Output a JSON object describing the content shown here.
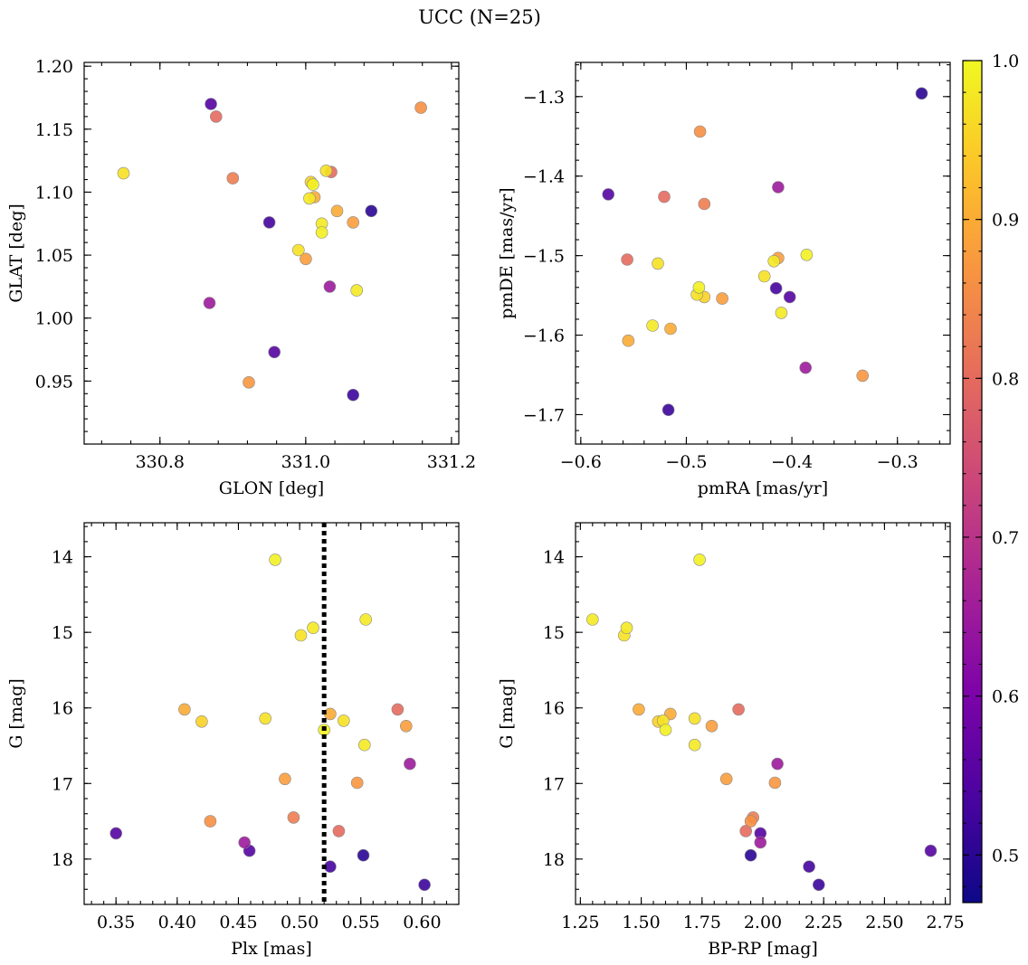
{
  "chart_data": {
    "title": "UCC (N=25)",
    "type": "scatter",
    "colormap": "plasma",
    "colorbar": {
      "range": [
        0.47,
        1.0
      ],
      "ticks": [
        0.5,
        0.6,
        0.7,
        0.8,
        0.9,
        1.0
      ],
      "tick_labels": [
        "0.5",
        "0.6",
        "0.7",
        "0.8",
        "0.9",
        "1.0"
      ]
    },
    "panels": [
      {
        "id": "glon-glat",
        "xlabel": "GLON [deg]",
        "ylabel": "GLAT [deg]",
        "xlim": [
          330.696,
          331.21
        ],
        "ylim": [
          0.9,
          1.203
        ],
        "xticks": [
          330.8,
          331.0,
          331.2
        ],
        "xtick_labels": [
          "330.8",
          "331.0",
          "331.2"
        ],
        "yticks": [
          0.95,
          1.0,
          1.05,
          1.1,
          1.15,
          1.2
        ],
        "ytick_labels": [
          "0.95",
          "1.00",
          "1.05",
          "1.10",
          "1.15",
          "1.20"
        ],
        "y_inverted": false
      },
      {
        "id": "pmra-pmde",
        "xlabel": "pmRA [mas/yr]",
        "ylabel": "pmDE [mas/yr]",
        "xlim": [
          -0.605,
          -0.25
        ],
        "ylim": [
          -1.737,
          -1.257
        ],
        "xticks": [
          -0.6,
          -0.5,
          -0.4,
          -0.3
        ],
        "xtick_labels": [
          "−0.6",
          "−0.5",
          "−0.4",
          "−0.3"
        ],
        "yticks": [
          -1.7,
          -1.6,
          -1.5,
          -1.4,
          -1.3
        ],
        "ytick_labels": [
          "−1.7",
          "−1.6",
          "−1.5",
          "−1.4",
          "−1.3"
        ],
        "y_inverted": false
      },
      {
        "id": "plx-g",
        "xlabel": "Plx [mas]",
        "ylabel": "G [mag]",
        "xlim": [
          0.324,
          0.63
        ],
        "ylim": [
          13.55,
          18.6
        ],
        "xticks": [
          0.35,
          0.4,
          0.45,
          0.5,
          0.55,
          0.6
        ],
        "xtick_labels": [
          "0.35",
          "0.40",
          "0.45",
          "0.50",
          "0.55",
          "0.60"
        ],
        "yticks": [
          14,
          15,
          16,
          17,
          18
        ],
        "ytick_labels": [
          "14",
          "15",
          "16",
          "17",
          "18"
        ],
        "y_inverted": true,
        "vline": 0.52
      },
      {
        "id": "bprp-g",
        "xlabel": "BP-RP [mag]",
        "ylabel": "G [mag]",
        "xlim": [
          1.23,
          2.77
        ],
        "ylim": [
          13.55,
          18.6
        ],
        "xticks": [
          1.25,
          1.5,
          1.75,
          2.0,
          2.25,
          2.5,
          2.75
        ],
        "xtick_labels": [
          "1.25",
          "1.50",
          "1.75",
          "2.00",
          "2.25",
          "2.50",
          "2.75"
        ],
        "yticks": [
          14,
          15,
          16,
          17,
          18
        ],
        "ytick_labels": [
          "14",
          "15",
          "16",
          "17",
          "18"
        ],
        "y_inverted": true
      }
    ],
    "stars": [
      {
        "glon": 330.75,
        "glat": 1.115,
        "pmra": -0.49,
        "pmde": -1.549,
        "plx": 0.472,
        "g": 16.14,
        "bprp": 1.72,
        "prob": 0.97
      },
      {
        "glon": 330.87,
        "glat": 1.17,
        "pmra": -0.574,
        "pmde": -1.423,
        "plx": 0.459,
        "g": 17.89,
        "bprp": 2.69,
        "prob": 0.55
      },
      {
        "glon": 330.877,
        "glat": 1.16,
        "pmra": -0.521,
        "pmde": -1.426,
        "plx": 0.58,
        "g": 16.02,
        "bprp": 1.9,
        "prob": 0.8
      },
      {
        "glon": 330.9,
        "glat": 1.111,
        "pmra": -0.483,
        "pmde": -1.435,
        "plx": 0.495,
        "g": 17.45,
        "bprp": 1.96,
        "prob": 0.83
      },
      {
        "glon": 331.158,
        "glat": 1.167,
        "pmra": -0.487,
        "pmde": -1.344,
        "plx": 0.427,
        "g": 17.5,
        "bprp": 1.95,
        "prob": 0.86
      },
      {
        "glon": 330.95,
        "glat": 1.076,
        "pmra": -0.415,
        "pmde": -1.541,
        "plx": 0.525,
        "g": 18.1,
        "bprp": 2.19,
        "prob": 0.53
      },
      {
        "glon": 331.09,
        "glat": 1.085,
        "pmra": -0.277,
        "pmde": -1.296,
        "plx": 0.552,
        "g": 17.95,
        "bprp": 1.95,
        "prob": 0.5
      },
      {
        "glon": 330.868,
        "glat": 1.012,
        "pmra": -0.387,
        "pmde": -1.641,
        "plx": 0.455,
        "g": 17.78,
        "bprp": 1.99,
        "prob": 0.65
      },
      {
        "glon": 331.033,
        "glat": 1.025,
        "pmra": -0.413,
        "pmde": -1.414,
        "plx": 0.59,
        "g": 16.74,
        "bprp": 2.06,
        "prob": 0.65
      },
      {
        "glon": 330.957,
        "glat": 0.973,
        "pmra": -0.402,
        "pmde": -1.552,
        "plx": 0.35,
        "g": 17.66,
        "bprp": 1.99,
        "prob": 0.55
      },
      {
        "glon": 331.065,
        "glat": 0.939,
        "pmra": -0.517,
        "pmde": -1.694,
        "plx": 0.602,
        "g": 18.34,
        "bprp": 2.23,
        "prob": 0.52
      },
      {
        "glon": 331.035,
        "glat": 1.116,
        "pmra": -0.556,
        "pmde": -1.505,
        "plx": 0.532,
        "g": 17.63,
        "bprp": 1.93,
        "prob": 0.8
      },
      {
        "glon": 330.922,
        "glat": 0.949,
        "pmra": -0.333,
        "pmde": -1.651,
        "plx": 0.547,
        "g": 16.99,
        "bprp": 2.05,
        "prob": 0.87
      },
      {
        "glon": 331.0,
        "glat": 1.047,
        "pmra": -0.466,
        "pmde": -1.554,
        "plx": 0.587,
        "g": 16.24,
        "bprp": 1.79,
        "prob": 0.88
      },
      {
        "glon": 331.065,
        "glat": 1.076,
        "pmra": -0.413,
        "pmde": -1.503,
        "plx": 0.488,
        "g": 16.94,
        "bprp": 1.85,
        "prob": 0.88
      },
      {
        "glon": 331.043,
        "glat": 1.085,
        "pmra": -0.555,
        "pmde": -1.607,
        "plx": 0.406,
        "g": 16.02,
        "bprp": 1.49,
        "prob": 0.9
      },
      {
        "glon": 331.012,
        "glat": 1.096,
        "pmra": -0.515,
        "pmde": -1.592,
        "plx": 0.525,
        "g": 16.08,
        "bprp": 1.62,
        "prob": 0.9
      },
      {
        "glon": 331.007,
        "glat": 1.108,
        "pmra": -0.483,
        "pmde": -1.552,
        "plx": 0.42,
        "g": 16.18,
        "bprp": 1.57,
        "prob": 0.95
      },
      {
        "glon": 331.028,
        "glat": 1.117,
        "pmra": -0.426,
        "pmde": -1.526,
        "plx": 0.501,
        "g": 15.04,
        "bprp": 1.43,
        "prob": 0.97
      },
      {
        "glon": 331.022,
        "glat": 1.075,
        "pmra": -0.41,
        "pmde": -1.572,
        "plx": 0.511,
        "g": 14.94,
        "bprp": 1.44,
        "prob": 0.98
      },
      {
        "glon": 331.022,
        "glat": 1.068,
        "pmra": -0.386,
        "pmde": -1.499,
        "plx": 0.48,
        "g": 14.04,
        "bprp": 1.74,
        "prob": 0.99
      },
      {
        "glon": 330.99,
        "glat": 1.054,
        "pmra": -0.527,
        "pmde": -1.51,
        "plx": 0.536,
        "g": 16.17,
        "bprp": 1.59,
        "prob": 0.97
      },
      {
        "glon": 331.07,
        "glat": 1.022,
        "pmra": -0.532,
        "pmde": -1.588,
        "plx": 0.554,
        "g": 14.83,
        "bprp": 1.3,
        "prob": 0.98
      },
      {
        "glon": 331.005,
        "glat": 1.095,
        "pmra": -0.417,
        "pmde": -1.507,
        "plx": 0.553,
        "g": 16.49,
        "bprp": 1.72,
        "prob": 0.98
      },
      {
        "glon": 331.01,
        "glat": 1.106,
        "pmra": -0.488,
        "pmde": -1.54,
        "plx": 0.52,
        "g": 16.29,
        "bprp": 1.6,
        "prob": 0.99
      }
    ]
  }
}
